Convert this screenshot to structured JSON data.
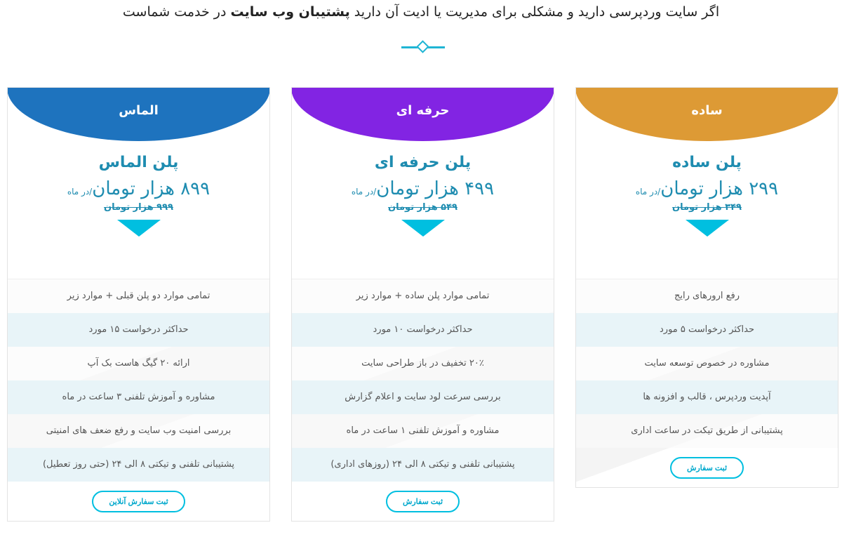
{
  "intro": {
    "text_before": "اگر سایت وردپرسی دارید و مشکلی برای مدیریت یا ادیت آن دارید ",
    "bold": "پشتیبان وب سایت",
    "text_after": " در خدمت شماست"
  },
  "colors": {
    "simple": "#dd9a35",
    "pro": "#8224e3",
    "diamond": "#1e73be",
    "accent": "#00bfe0"
  },
  "plans": [
    {
      "name": "ساده",
      "title": "پلن ساده",
      "price": "۲۹۹ هزار تومان",
      "per": "/در ماه",
      "old_price": "۳۴۹ هزار تومان",
      "features": [
        "رفع ارورهای رایج",
        "حداکثر درخواست ۵ مورد",
        "مشاوره در خصوص توسعه سایت",
        "آپدیت وردپرس ، قالب و افزونه ها",
        "پشتیبانی از طریق تیکت در ساعت اداری"
      ],
      "button": "ثبت سفارش"
    },
    {
      "name": "حرفه ای",
      "title": "پلن حرفه ای",
      "price": "۴۹۹ هزار تومان",
      "per": "/در ماه",
      "old_price": "۵۴۹ هزار تومان",
      "features": [
        "تمامی موارد پلن ساده + موارد زیر",
        "حداکثر درخواست ۱۰ مورد",
        "۲۰٪ تخفیف در باز طراحی سایت",
        "بررسی سرعت لود سایت و اعلام گزارش",
        "مشاوره و آموزش تلفنی ۱ ساعت در ماه",
        "پشتیبانی تلفنی و تیکتی ۸ الی ۲۴ (روزهای اداری)"
      ],
      "button": "ثبت سفارش"
    },
    {
      "name": "الماس",
      "title": "پلن الماس",
      "price": "۸۹۹ هزار تومان",
      "per": "/در ماه",
      "old_price": "۹۹۹ هزار تومان",
      "features": [
        "تمامی موارد دو پلن قبلی + موارد زیر",
        "حداکثر درخواست ۱۵ مورد",
        "ارائه ۲۰ گیگ هاست بک آپ",
        "مشاوره و آموزش تلفنی ۳ ساعت در ماه",
        "بررسی امنیت وب سایت و رفع ضعف های امنیتی",
        "پشتیبانی تلفنی و تیکتی ۸ الی ۲۴ (حتی روز تعطیل)"
      ],
      "button": "ثبت سفارش آنلاین"
    }
  ]
}
